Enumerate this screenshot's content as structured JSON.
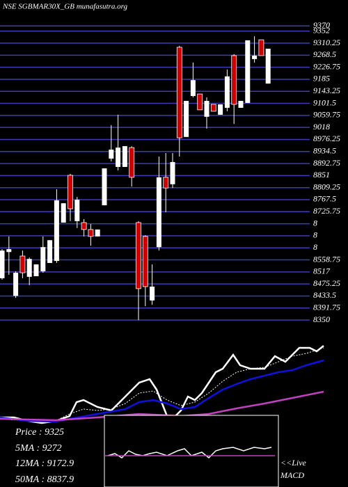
{
  "chart_data": [
    {
      "type": "candlestick",
      "title": "NSE SGBMAR30X_GB munafasutra.org",
      "up_color": "#ffffff",
      "down_color": "#cc0000",
      "grid_color": "#3c3cb4",
      "ylim": [
        8326,
        9387.5
      ],
      "yticks": [
        9370,
        9352,
        9310.25,
        9268.5,
        9226.75,
        9185,
        9143.25,
        9101.5,
        9059.75,
        9018,
        8976.25,
        8934.5,
        8892.75,
        8851,
        8809.25,
        8767.5,
        8725.75,
        {
          "value": 8684,
          "label": "8"
        },
        {
          "value": 8642.25,
          "label": "8"
        },
        {
          "value": 8600.5,
          "label": "8"
        },
        8558.75,
        8517,
        8475.25,
        8433.5,
        8391.75,
        8350
      ],
      "open": [
        8495,
        8586,
        8434,
        8572,
        8500,
        8502,
        8519,
        8548,
        8555,
        8688,
        8852,
        8693,
        8688,
        8664,
        8640,
        8748,
        8910,
        8881,
        8881,
        8948,
        8688,
        8640,
        8418,
        8603,
        8845,
        8821,
        9296,
        8985,
        9127,
        9134,
        9055,
        9098,
        9062,
        9086,
        9267,
        9086,
        9103,
        9255,
        9322,
        9170
      ],
      "high": [
        8596,
        8640,
        8519,
        8591,
        8567,
        8543,
        8640,
        8627,
        8804,
        8755,
        8857,
        8777,
        8700,
        8683,
        8664,
        8876,
        9026,
        9062,
        8953,
        8953,
        8693,
        8644,
        8543,
        8917,
        8929,
        8929,
        9301,
        9110,
        9243,
        9134,
        9122,
        9098,
        9098,
        9219,
        9272,
        9110,
        9320,
        9334,
        9322,
        9291
      ],
      "low": [
        8490,
        8507,
        8427,
        8495,
        8471,
        8502,
        8514,
        8548,
        8548,
        8688,
        8693,
        8669,
        8640,
        8608,
        8640,
        8748,
        8900,
        8869,
        8881,
        8813,
        8350,
        8398,
        8403,
        8591,
        8724,
        8808,
        8917,
        8985,
        9122,
        9079,
        9014,
        9074,
        9062,
        9074,
        9030,
        9086,
        9103,
        9243,
        9267,
        9170
      ],
      "close": [
        8591,
        8596,
        8514,
        8514,
        8562,
        8543,
        8603,
        8627,
        8765,
        8755,
        8736,
        8767,
        8664,
        8640,
        8664,
        8876,
        8941,
        8948,
        8953,
        8845,
        8459,
        8466,
        8466,
        8845,
        8808,
        8898,
        8982,
        9110,
        9182,
        9079,
        9110,
        9074,
        9098,
        9195,
        9098,
        9110,
        9320,
        9267,
        9267,
        9291
      ]
    },
    {
      "type": "line",
      "xlim": [
        0,
        470
      ],
      "ylim": [
        90,
        210
      ],
      "series": [
        {
          "color": "#ffffff",
          "x": [
            0,
            20,
            40,
            60,
            80,
            100,
            110,
            120,
            140,
            160,
            180,
            200,
            215,
            225,
            240,
            250,
            260,
            270,
            280,
            290,
            300,
            310,
            320,
            335,
            345,
            360,
            380,
            395,
            410,
            430,
            445,
            455,
            465
          ],
          "values": [
            100,
            100,
            95,
            92,
            95,
            102,
            122,
            125,
            115,
            110,
            130,
            150,
            155,
            140,
            102,
            100,
            110,
            130,
            125,
            135,
            150,
            165,
            170,
            190,
            175,
            170,
            170,
            188,
            180,
            200,
            200,
            195,
            203
          ]
        },
        {
          "color": "#ffffff",
          "dash": true,
          "x": [
            0,
            40,
            80,
            100,
            120,
            140,
            160,
            180,
            200,
            220,
            240,
            260,
            280,
            300,
            320,
            340,
            360,
            380,
            400,
            420,
            440,
            465
          ],
          "values": [
            98,
            95,
            95,
            105,
            112,
            110,
            112,
            120,
            135,
            138,
            125,
            117,
            122,
            135,
            152,
            165,
            170,
            172,
            180,
            188,
            192,
            200
          ]
        },
        {
          "color": "#1010e0",
          "x": [
            0,
            40,
            80,
            100,
            140,
            180,
            200,
            220,
            240,
            260,
            280,
            300,
            320,
            340,
            360,
            380,
            400,
            420,
            440,
            465
          ],
          "values": [
            100,
            95,
            94,
            98,
            105,
            112,
            122,
            125,
            120,
            112,
            115,
            128,
            140,
            148,
            155,
            160,
            165,
            168,
            175,
            182
          ]
        },
        {
          "color": "#c040c0",
          "x": [
            0,
            80,
            140,
            200,
            260,
            300,
            340,
            380,
            420,
            465
          ],
          "values": [
            98,
            96,
            100,
            105,
            102,
            105,
            113,
            120,
            128,
            137
          ]
        }
      ]
    },
    {
      "type": "macd",
      "xlim": [
        150,
        400
      ],
      "ylim": [
        0,
        100
      ],
      "series": [
        {
          "color": "#ffffff",
          "x": [
            155,
            165,
            175,
            185,
            195,
            205,
            215,
            225,
            240,
            255,
            265,
            275,
            290,
            300,
            310,
            320,
            335,
            350,
            365,
            380,
            390
          ],
          "values": [
            45,
            48,
            42,
            52,
            47,
            45,
            48,
            50,
            45,
            52,
            55,
            45,
            50,
            42,
            52,
            55,
            57,
            52,
            57,
            55,
            57
          ]
        },
        {
          "color": "#c040c0",
          "x": [
            150,
            395
          ],
          "values": [
            45,
            45
          ]
        }
      ]
    }
  ],
  "info": [
    "Price : 9325",
    "5MA : 9272",
    "12MA : 9172.9",
    "50MA : 8837.9"
  ],
  "live": "<<Live",
  "macd_label": "MACD"
}
